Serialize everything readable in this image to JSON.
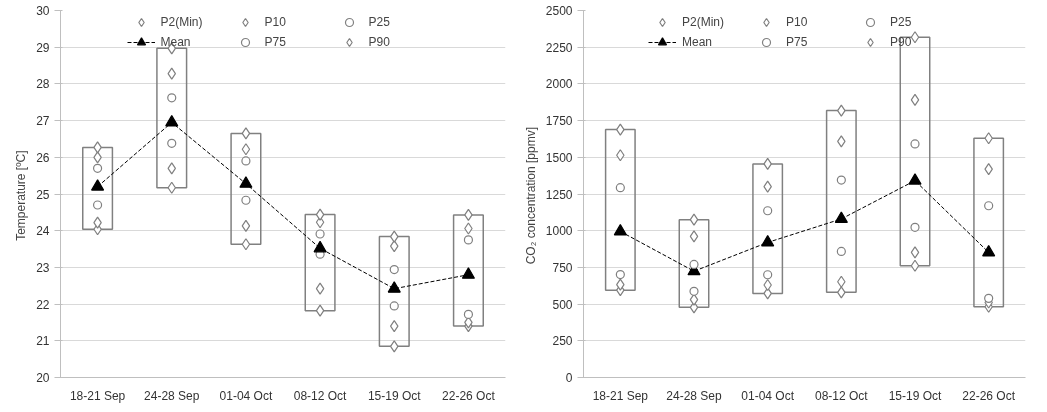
{
  "chart_data": [
    {
      "type": "scatter",
      "ylabel": "Temperature  [ºC]",
      "categories": [
        "18-21 Sep",
        "24-28 Sep",
        "01-04 Oct",
        "08-12 Oct",
        "15-19 Oct",
        "22-26 Oct"
      ],
      "ylim": [
        20,
        30
      ],
      "yticks": [
        20,
        21,
        22,
        23,
        24,
        25,
        26,
        27,
        28,
        29,
        30
      ],
      "grid": "y",
      "legend": "top",
      "series": [
        {
          "type": "bar",
          "color": "#808080",
          "base": [
            24.04,
            25.17,
            23.63,
            21.82,
            20.85,
            21.4
          ],
          "values": [
            2.23,
            3.8,
            3.02,
            2.62,
            2.99,
            3.03
          ]
        },
        {
          "name": "P2(Min)",
          "marker": "diamond",
          "color": "#7f7f7f",
          "values": [
            24.04,
            25.17,
            23.63,
            21.82,
            20.85,
            21.4
          ]
        },
        {
          "name": "P10",
          "marker": "diamond",
          "color": "#808080",
          "values": [
            24.22,
            25.7,
            24.13,
            22.42,
            21.4,
            21.5
          ]
        },
        {
          "name": "P25",
          "marker": "circle",
          "color": "#808080",
          "values": [
            24.7,
            26.38,
            24.83,
            23.36,
            21.95,
            21.72
          ]
        },
        {
          "name": "Mean",
          "type": "line",
          "marker": "triangle",
          "line_style": "dashed",
          "color": "#000000",
          "values": [
            25.2,
            26.95,
            25.28,
            23.52,
            22.42,
            22.8
          ]
        },
        {
          "name": "P75",
          "marker": "circle",
          "color": "#808080",
          "values": [
            25.7,
            27.62,
            25.9,
            23.91,
            22.94,
            23.75
          ]
        },
        {
          "name": "P90",
          "marker": "diamond",
          "color": "#808080",
          "values": [
            26.0,
            28.28,
            26.22,
            24.23,
            23.58,
            24.06
          ]
        },
        {
          "marker": "diamond",
          "color": "#7f7f7f",
          "values": [
            26.27,
            28.97,
            26.65,
            24.44,
            23.84,
            24.43
          ]
        }
      ]
    },
    {
      "type": "scatter",
      "ylabel": "CO₂ concentration  [ppmv]",
      "categories": [
        "18-21 Sep",
        "24-28 Sep",
        "01-04 Oct",
        "08-12 Oct",
        "15-19 Oct",
        "22-26 Oct"
      ],
      "ylim": [
        0,
        2500
      ],
      "yticks": [
        0,
        250,
        500,
        750,
        1000,
        1250,
        1500,
        1750,
        2000,
        2250,
        2500
      ],
      "grid": "y",
      "legend": "top",
      "series": [
        {
          "type": "bar",
          "color": "#808080",
          "base": [
            595,
            478,
            573,
            580,
            761,
            482
          ],
          "values": [
            1094,
            597,
            882,
            1238,
            1557,
            1148
          ]
        },
        {
          "name": "P2(Min)",
          "marker": "diamond",
          "color": "#7f7f7f",
          "values": [
            595,
            478,
            573,
            580,
            761,
            482
          ]
        },
        {
          "name": "P10",
          "marker": "diamond",
          "color": "#808080",
          "values": [
            633,
            530,
            630,
            652,
            852,
            511
          ]
        },
        {
          "name": "P25",
          "marker": "circle",
          "color": "#808080",
          "values": [
            701,
            587,
            700,
            859,
            1023,
            539
          ]
        },
        {
          "name": "Mean",
          "type": "line",
          "marker": "triangle",
          "line_style": "dashed",
          "color": "#000000",
          "values": [
            995,
            724,
            920,
            1080,
            1341,
            852
          ]
        },
        {
          "name": "P75",
          "marker": "circle",
          "color": "#808080",
          "values": [
            1293,
            770,
            1136,
            1345,
            1591,
            1170
          ]
        },
        {
          "name": "P90",
          "marker": "diamond",
          "color": "#808080",
          "values": [
            1514,
            961,
            1300,
            1609,
            1891,
            1420
          ]
        },
        {
          "marker": "diamond",
          "color": "#7f7f7f",
          "values": [
            1689,
            1075,
            1455,
            1818,
            2318,
            1630
          ]
        }
      ]
    }
  ]
}
